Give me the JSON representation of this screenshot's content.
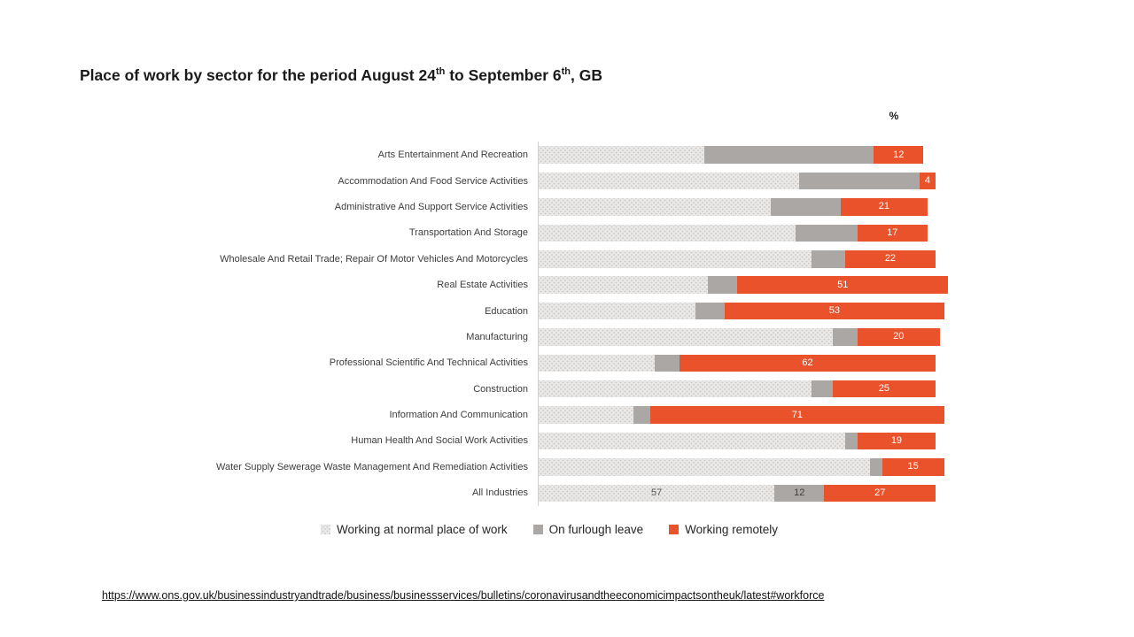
{
  "title": {
    "part1": "Place of work by sector for the period August 24",
    "sup1": "th",
    "part2": " to September 6",
    "sup2": "th",
    "part3": ", GB"
  },
  "axis": {
    "unit_label": "%"
  },
  "legend": {
    "items": [
      {
        "label": "Working at normal place of work"
      },
      {
        "label": "On furlough leave"
      },
      {
        "label": "Working remotely"
      }
    ]
  },
  "footer": {
    "source_url": "https://www.ons.gov.uk/businessindustryandtrade/business/businessservices/bulletins/coronavirusandtheeconomicimpactsontheuk/latest#workforce"
  },
  "colors": {
    "normal_fill": "#EAE9E8",
    "normal_dots": "#CFCDCB",
    "furlough": "#ABA7A4",
    "remote": "#E9522A"
  },
  "chart_data": {
    "type": "bar",
    "orientation": "horizontal",
    "stacked": true,
    "unit": "%",
    "xlim": [
      0,
      100
    ],
    "grid": false,
    "legend_position": "bottom",
    "title": "Place of work by sector for the period August 24th to September 6th, GB",
    "categories": [
      "Arts Entertainment And Recreation",
      "Accommodation And Food Service Activities",
      "Administrative And Support Service Activities",
      "Transportation And Storage",
      "Wholesale And Retail Trade; Repair Of Motor Vehicles And Motorcycles",
      "Real Estate Activities",
      "Education",
      "Manufacturing",
      "Professional Scientific And Technical Activities",
      "Construction",
      "Information And Communication",
      "Human Health And Social Work Activities",
      "Water Supply Sewerage Waste Management And Remediation Activities",
      "All Industries"
    ],
    "series": [
      {
        "name": "Working at normal place of work",
        "color": "#EAE9E8",
        "values": [
          40,
          63,
          56,
          62,
          66,
          41,
          38,
          71,
          28,
          66,
          23,
          74,
          80,
          57
        ]
      },
      {
        "name": "On furlough leave",
        "color": "#ABA7A4",
        "values": [
          41,
          29,
          17,
          15,
          8,
          7,
          7,
          6,
          6,
          5,
          4,
          3,
          3,
          12
        ]
      },
      {
        "name": "Working remotely",
        "color": "#E9522A",
        "values": [
          12,
          4,
          21,
          17,
          22,
          51,
          53,
          20,
          62,
          25,
          71,
          19,
          15,
          27
        ]
      }
    ],
    "data_labels": {
      "remote_values_labeled_on_every_bar": true,
      "fully_labeled_category": "All Industries",
      "all_industries_labels": [
        57,
        12,
        27
      ]
    }
  }
}
